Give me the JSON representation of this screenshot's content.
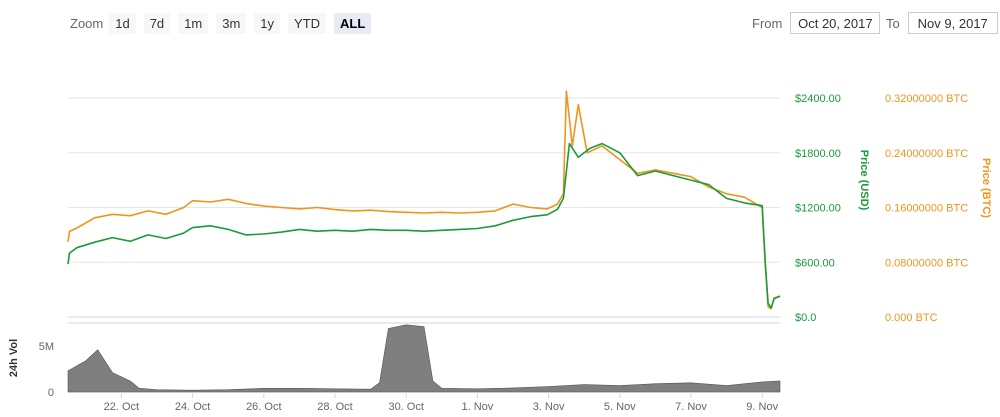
{
  "zoom": {
    "label": "Zoom",
    "buttons": [
      "1d",
      "7d",
      "1m",
      "3m",
      "1y",
      "YTD",
      "ALL"
    ],
    "active": "ALL"
  },
  "range": {
    "from_label": "From",
    "from_value": "Oct 20, 2017",
    "to_label": "To",
    "to_value": "Nov 9, 2017"
  },
  "colors": {
    "usd": "#1a9b3a",
    "btc": "#f0941c",
    "volume": "#7f7f7f",
    "usd_axis": "#1a9b3a",
    "btc_axis": "#f0941c"
  },
  "chart_data": {
    "type": "line",
    "x_range": [
      "2017-10-20T12:00",
      "2017-11-09T12:00"
    ],
    "x_ticks": [
      {
        "date": "2017-10-22",
        "label": "22. Oct"
      },
      {
        "date": "2017-10-24",
        "label": "24. Oct"
      },
      {
        "date": "2017-10-26",
        "label": "26. Oct"
      },
      {
        "date": "2017-10-28",
        "label": "28. Oct"
      },
      {
        "date": "2017-10-30",
        "label": "30. Oct"
      },
      {
        "date": "2017-11-01",
        "label": "1. Nov"
      },
      {
        "date": "2017-11-03",
        "label": "3. Nov"
      },
      {
        "date": "2017-11-05",
        "label": "5. Nov"
      },
      {
        "date": "2017-11-07",
        "label": "7. Nov"
      },
      {
        "date": "2017-11-09",
        "label": "9. Nov"
      }
    ],
    "y_usd": {
      "title": "Price (USD)",
      "range": [
        0,
        2400
      ],
      "ticks": [
        0,
        600,
        1200,
        1800,
        2400
      ],
      "tick_labels": [
        "$0.0",
        "$600.00",
        "$1200.00",
        "$1800.00",
        "$2400.00"
      ]
    },
    "y_btc": {
      "title": "Price (BTC)",
      "range": [
        0,
        0.32
      ],
      "ticks": [
        0,
        0.08,
        0.16,
        0.24,
        0.32
      ],
      "tick_labels": [
        "0.000 BTC",
        "0.08000000 BTC",
        "0.16000000 BTC",
        "0.24000000 BTC",
        "0.32000000 BTC"
      ]
    },
    "y_vol": {
      "title": "24h Vol",
      "range": [
        0,
        7500000
      ],
      "ticks": [
        0,
        5000000
      ],
      "tick_labels": [
        "0",
        "5M"
      ]
    },
    "grid": true,
    "series": [
      {
        "axis": "usd",
        "points": [
          [
            "2017-10-20T12:00",
            580
          ],
          [
            "2017-10-20T13:00",
            700
          ],
          [
            "2017-10-20T18:00",
            760
          ],
          [
            "2017-10-21T06:00",
            820
          ],
          [
            "2017-10-21T18:00",
            870
          ],
          [
            "2017-10-22T06:00",
            830
          ],
          [
            "2017-10-22T18:00",
            900
          ],
          [
            "2017-10-23T06:00",
            860
          ],
          [
            "2017-10-23T18:00",
            920
          ],
          [
            "2017-10-24T00:00",
            980
          ],
          [
            "2017-10-24T12:00",
            1000
          ],
          [
            "2017-10-25T00:00",
            960
          ],
          [
            "2017-10-25T12:00",
            900
          ],
          [
            "2017-10-26T00:00",
            910
          ],
          [
            "2017-10-26T12:00",
            930
          ],
          [
            "2017-10-27T00:00",
            960
          ],
          [
            "2017-10-27T12:00",
            940
          ],
          [
            "2017-10-28T00:00",
            950
          ],
          [
            "2017-10-28T12:00",
            940
          ],
          [
            "2017-10-29T00:00",
            960
          ],
          [
            "2017-10-29T12:00",
            950
          ],
          [
            "2017-10-30T00:00",
            950
          ],
          [
            "2017-10-30T12:00",
            940
          ],
          [
            "2017-10-31T00:00",
            950
          ],
          [
            "2017-10-31T12:00",
            960
          ],
          [
            "2017-11-01T00:00",
            970
          ],
          [
            "2017-11-01T12:00",
            1000
          ],
          [
            "2017-11-02T00:00",
            1060
          ],
          [
            "2017-11-02T12:00",
            1100
          ],
          [
            "2017-11-02T23:00",
            1120
          ],
          [
            "2017-11-03T06:00",
            1180
          ],
          [
            "2017-11-03T10:00",
            1300
          ],
          [
            "2017-11-03T14:00",
            1900
          ],
          [
            "2017-11-03T20:00",
            1750
          ],
          [
            "2017-11-04T04:00",
            1850
          ],
          [
            "2017-11-04T12:00",
            1900
          ],
          [
            "2017-11-05T00:00",
            1800
          ],
          [
            "2017-11-05T12:00",
            1550
          ],
          [
            "2017-11-06T00:00",
            1600
          ],
          [
            "2017-11-06T12:00",
            1550
          ],
          [
            "2017-11-07T00:00",
            1500
          ],
          [
            "2017-11-07T12:00",
            1450
          ],
          [
            "2017-11-08T00:00",
            1300
          ],
          [
            "2017-11-08T12:00",
            1250
          ],
          [
            "2017-11-09T00:00",
            1220
          ],
          [
            "2017-11-09T02:00",
            600
          ],
          [
            "2017-11-09T04:00",
            150
          ],
          [
            "2017-11-09T06:00",
            100
          ],
          [
            "2017-11-09T08:00",
            200
          ],
          [
            "2017-11-09T12:00",
            230
          ]
        ]
      },
      {
        "axis": "btc",
        "points": [
          [
            "2017-10-20T12:00",
            0.11
          ],
          [
            "2017-10-20T13:00",
            0.125
          ],
          [
            "2017-10-20T18:00",
            0.13
          ],
          [
            "2017-10-21T06:00",
            0.145
          ],
          [
            "2017-10-21T18:00",
            0.15
          ],
          [
            "2017-10-22T06:00",
            0.148
          ],
          [
            "2017-10-22T18:00",
            0.155
          ],
          [
            "2017-10-23T06:00",
            0.15
          ],
          [
            "2017-10-23T18:00",
            0.16
          ],
          [
            "2017-10-24T00:00",
            0.17
          ],
          [
            "2017-10-24T12:00",
            0.168
          ],
          [
            "2017-10-25T00:00",
            0.172
          ],
          [
            "2017-10-25T12:00",
            0.166
          ],
          [
            "2017-10-26T00:00",
            0.162
          ],
          [
            "2017-10-26T12:00",
            0.16
          ],
          [
            "2017-10-27T00:00",
            0.158
          ],
          [
            "2017-10-27T12:00",
            0.16
          ],
          [
            "2017-10-28T00:00",
            0.157
          ],
          [
            "2017-10-28T12:00",
            0.155
          ],
          [
            "2017-10-29T00:00",
            0.156
          ],
          [
            "2017-10-29T12:00",
            0.154
          ],
          [
            "2017-10-30T00:00",
            0.153
          ],
          [
            "2017-10-30T12:00",
            0.152
          ],
          [
            "2017-10-31T00:00",
            0.153
          ],
          [
            "2017-10-31T12:00",
            0.152
          ],
          [
            "2017-11-01T00:00",
            0.153
          ],
          [
            "2017-11-01T12:00",
            0.155
          ],
          [
            "2017-11-02T00:00",
            0.165
          ],
          [
            "2017-11-02T12:00",
            0.16
          ],
          [
            "2017-11-02T23:00",
            0.158
          ],
          [
            "2017-11-03T06:00",
            0.165
          ],
          [
            "2017-11-03T10:00",
            0.18
          ],
          [
            "2017-11-03T12:00",
            0.33
          ],
          [
            "2017-11-03T16:00",
            0.25
          ],
          [
            "2017-11-03T20:00",
            0.31
          ],
          [
            "2017-11-04T02:00",
            0.24
          ],
          [
            "2017-11-04T12:00",
            0.25
          ],
          [
            "2017-11-05T00:00",
            0.23
          ],
          [
            "2017-11-05T12:00",
            0.21
          ],
          [
            "2017-11-06T00:00",
            0.215
          ],
          [
            "2017-11-06T12:00",
            0.21
          ],
          [
            "2017-11-07T00:00",
            0.205
          ],
          [
            "2017-11-07T12:00",
            0.19
          ],
          [
            "2017-11-08T00:00",
            0.18
          ],
          [
            "2017-11-08T12:00",
            0.175
          ],
          [
            "2017-11-09T00:00",
            0.16
          ],
          [
            "2017-11-09T02:00",
            0.08
          ],
          [
            "2017-11-09T04:00",
            0.015
          ],
          [
            "2017-11-09T06:00",
            0.012
          ],
          [
            "2017-11-09T08:00",
            0.028
          ],
          [
            "2017-11-09T12:00",
            0.03
          ]
        ]
      },
      {
        "axis": "vol",
        "points": [
          [
            "2017-10-20T12:00",
            2300000
          ],
          [
            "2017-10-21T00:00",
            3400000
          ],
          [
            "2017-10-21T08:00",
            4600000
          ],
          [
            "2017-10-21T18:00",
            2100000
          ],
          [
            "2017-10-22T06:00",
            1200000
          ],
          [
            "2017-10-22T12:00",
            400000
          ],
          [
            "2017-10-23T00:00",
            250000
          ],
          [
            "2017-10-24T00:00",
            200000
          ],
          [
            "2017-10-25T00:00",
            250000
          ],
          [
            "2017-10-26T00:00",
            400000
          ],
          [
            "2017-10-27T00:00",
            400000
          ],
          [
            "2017-10-28T00:00",
            350000
          ],
          [
            "2017-10-29T00:00",
            300000
          ],
          [
            "2017-10-29T06:00",
            1000000
          ],
          [
            "2017-10-29T12:00",
            6900000
          ],
          [
            "2017-10-30T00:00",
            7300000
          ],
          [
            "2017-10-30T12:00",
            7100000
          ],
          [
            "2017-10-30T18:00",
            1200000
          ],
          [
            "2017-10-31T00:00",
            400000
          ],
          [
            "2017-11-01T00:00",
            350000
          ],
          [
            "2017-11-02T00:00",
            450000
          ],
          [
            "2017-11-03T00:00",
            600000
          ],
          [
            "2017-11-04T00:00",
            800000
          ],
          [
            "2017-11-05T00:00",
            700000
          ],
          [
            "2017-11-06T00:00",
            900000
          ],
          [
            "2017-11-07T00:00",
            1000000
          ],
          [
            "2017-11-08T00:00",
            700000
          ],
          [
            "2017-11-09T00:00",
            1100000
          ],
          [
            "2017-11-09T12:00",
            1200000
          ]
        ]
      }
    ]
  }
}
